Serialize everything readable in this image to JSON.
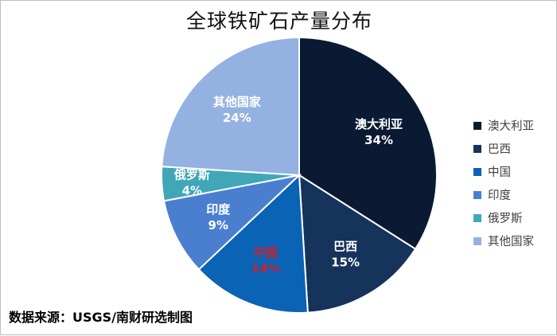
{
  "title": "全球铁矿石产量分布",
  "source": "数据来源：USGS/南财研选制图",
  "chart_data": {
    "type": "pie",
    "title": "全球铁矿石产量分布",
    "unit": "%",
    "legend_position": "right",
    "slices": [
      {
        "name": "澳大利亚",
        "value": 34,
        "label": "34%",
        "color": "#0b1a33",
        "label_color": "#ffffff"
      },
      {
        "name": "巴西",
        "value": 15,
        "label": "15%",
        "color": "#16335c",
        "label_color": "#ffffff"
      },
      {
        "name": "中国",
        "value": 14,
        "label": "14%",
        "color": "#0a63b4",
        "label_color": "#d1202b"
      },
      {
        "name": "印度",
        "value": 9,
        "label": "9%",
        "color": "#4a7fd0",
        "label_color": "#ffffff"
      },
      {
        "name": "俄罗斯",
        "value": 4,
        "label": "4%",
        "color": "#40a6b8",
        "label_color": "#ffffff"
      },
      {
        "name": "其他国家",
        "value": 24,
        "label": "24%",
        "color": "#93b2e2",
        "label_color": "#ffffff"
      }
    ]
  }
}
